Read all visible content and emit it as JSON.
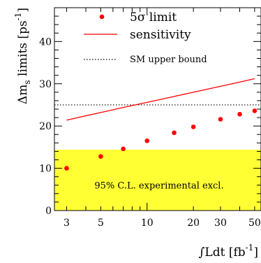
{
  "chart_data": {
    "type": "scatter",
    "x_scale": "log",
    "xlim": [
      2.5,
      55
    ],
    "ylim": [
      0,
      48
    ],
    "x_ticks": [
      3,
      5,
      10,
      20,
      30,
      50
    ],
    "x_tick_labels": [
      "3",
      "5",
      "10",
      "20",
      "30",
      "50"
    ],
    "y_ticks": [
      0,
      10,
      20,
      30,
      40
    ],
    "y_tick_labels": [
      "0",
      "10",
      "20",
      "30",
      "40"
    ],
    "ylabel_main": "Δm",
    "ylabel_sub": "s",
    "ylabel_rest": " limits [ps",
    "ylabel_sup": "-1",
    "ylabel_end": "]",
    "xlabel_main": "∫Ldt   [fb",
    "xlabel_sup": "-1",
    "xlabel_end": "]",
    "series": [
      {
        "name": "5σ limit",
        "kind": "points",
        "color": "#ff0000",
        "x": [
          3,
          5,
          7,
          10,
          15,
          20,
          30,
          40,
          50
        ],
        "y": [
          10.0,
          12.8,
          14.6,
          16.5,
          18.4,
          19.8,
          21.6,
          22.8,
          23.6
        ]
      },
      {
        "name": "sensitivity",
        "kind": "line",
        "color": "#ff0000",
        "x": [
          3,
          5,
          7,
          10,
          15,
          20,
          30,
          40,
          50
        ],
        "y": [
          21.4,
          23.2,
          24.4,
          25.6,
          27.0,
          28.0,
          29.4,
          30.4,
          31.2
        ]
      },
      {
        "name": "SM upper bound",
        "kind": "hline",
        "color": "#000000",
        "style": "dotted",
        "y": 25
      }
    ],
    "band": {
      "label": "95% C.L. experimental excl.",
      "y_from": 0,
      "y_to": 14.4,
      "color": "#ffff33"
    }
  }
}
